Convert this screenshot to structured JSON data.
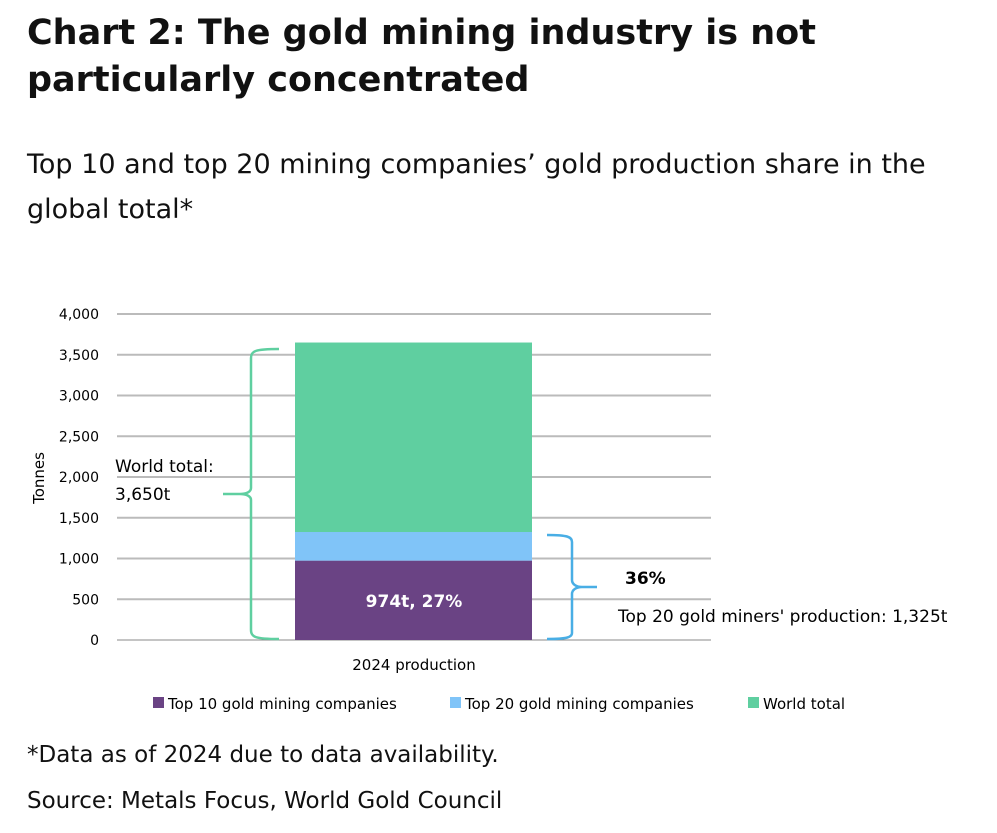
{
  "title": "Chart 2: The gold mining industry is not particularly concentrated",
  "subtitle": "Top 10 and top 20 mining companies’ gold production share in the global total*",
  "footnote": "*Data as of 2024 due to data availability.",
  "source": "Source: Metals Focus, World Gold Council",
  "chart_data": {
    "type": "bar",
    "stacked": true,
    "categories": [
      "2024 production"
    ],
    "ylabel": "Tonnes",
    "ylim": [
      0,
      4000
    ],
    "yticks": [
      "0",
      "500",
      "1,000",
      "1,500",
      "2,000",
      "2,500",
      "3,000",
      "3,500",
      "4,000"
    ],
    "grid": true,
    "legend_position": "bottom",
    "series": [
      {
        "name": "Top 10 gold mining companies",
        "values": [
          974
        ],
        "color": "#6a4384"
      },
      {
        "name": "Top 20 gold mining companies",
        "values": [
          351
        ],
        "color": "#80c4f8"
      },
      {
        "name": "World total",
        "values": [
          2325
        ],
        "color": "#5fcfa0"
      }
    ],
    "annotations": {
      "bar_label": "974t, 27%",
      "world_label_1": "World total:",
      "world_label_2": "3,650t",
      "top20_pct": "36%",
      "top20_label": "Top 20 gold miners' production: 1,325t"
    }
  }
}
